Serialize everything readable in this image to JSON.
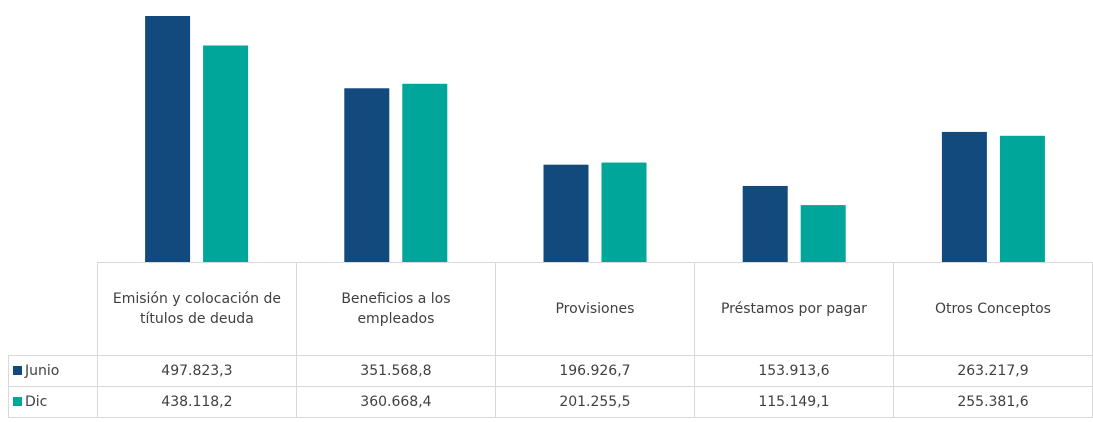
{
  "chart_data": {
    "type": "bar",
    "categories": [
      "Emisión y colocación de títulos de deuda",
      "Beneficios a los empleados",
      "Provisiones",
      "Préstamos por pagar",
      "Otros Conceptos"
    ],
    "series": [
      {
        "name": "Junio",
        "color": "#124a7e",
        "values": [
          497823.3,
          351568.8,
          196926.7,
          153913.6,
          263217.9
        ],
        "value_labels": [
          "497.823,3",
          "351.568,8",
          "196.926,7",
          "153.913,6",
          "263.217,9"
        ]
      },
      {
        "name": "Dic",
        "color": "#00a699",
        "values": [
          438118.2,
          360668.4,
          201255.5,
          115149.1,
          255381.6
        ],
        "value_labels": [
          "438.118,2",
          "360.668,4",
          "201.255,5",
          "115.149,1",
          "255.381,6"
        ]
      }
    ]
  }
}
